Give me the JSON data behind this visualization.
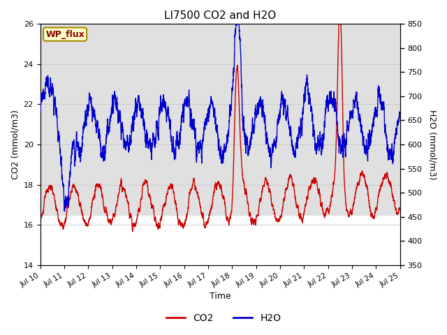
{
  "title": "LI7500 CO2 and H2O",
  "xlabel": "Time",
  "ylabel_left": "CO2 (mmol/m3)",
  "ylabel_right": "H2O (mmol/m3)",
  "co2_ylim": [
    14,
    26
  ],
  "h2o_ylim": [
    350,
    850
  ],
  "co2_yticks": [
    14,
    16,
    18,
    20,
    22,
    24,
    26
  ],
  "h2o_yticks": [
    350,
    400,
    450,
    500,
    550,
    600,
    650,
    700,
    750,
    800,
    850
  ],
  "xtick_labels": [
    "Jul 10",
    "Jul 11",
    "Jul 12",
    "Jul 13",
    "Jul 14",
    "Jul 15",
    "Jul 16",
    "Jul 17",
    "Jul 18",
    "Jul 19",
    "Jul 20",
    "Jul 21",
    "Jul 22",
    "Jul 23",
    "Jul 24",
    "Jul 25"
  ],
  "co2_color": "#CC0000",
  "h2o_color": "#0000CC",
  "legend_co2": "CO2",
  "legend_h2o": "H2O",
  "wp_flux_label": "WP_flux",
  "wp_flux_bg": "#FFFFCC",
  "wp_flux_border": "#AA8800",
  "wp_flux_text_color": "#880000",
  "shading_color": "#E0E0E0",
  "shading_co2_low": 16.5,
  "shading_co2_high": 26.0,
  "grid_color": "#CCCCCC",
  "background_color": "#FFFFFF",
  "linewidth": 1.0,
  "n_points": 5000,
  "seed": 7
}
